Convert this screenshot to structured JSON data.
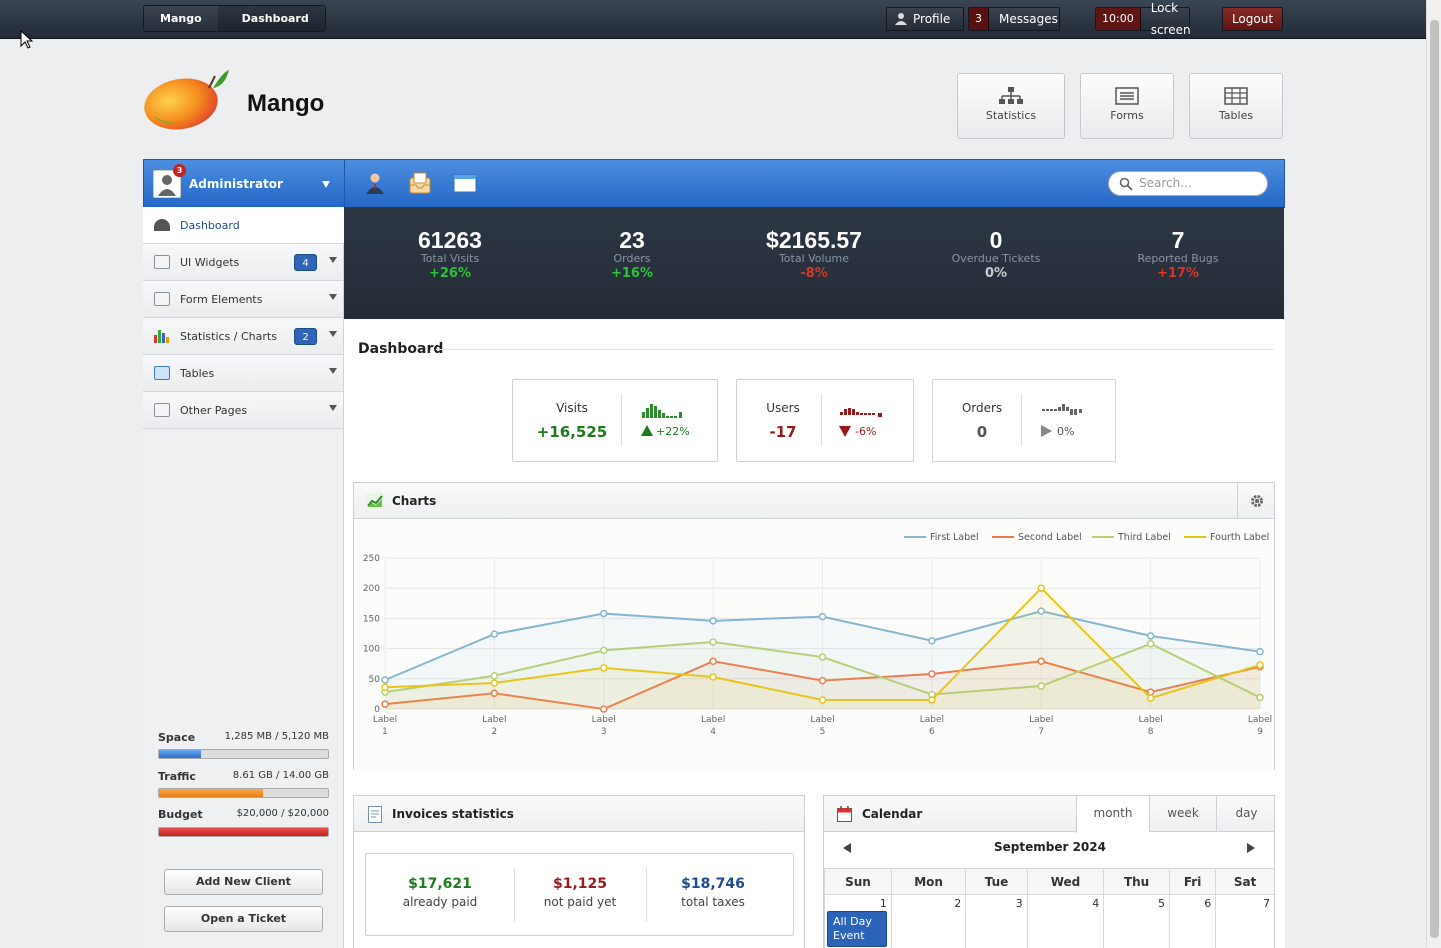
{
  "topbar": {
    "breadcrumbs": [
      "Mango",
      "Dashboard"
    ],
    "profile_label": "Profile",
    "messages_count": "3",
    "messages_label": "Messages",
    "time": "10:00",
    "lock_label": "Lock screen",
    "logout_label": "Logout"
  },
  "brand": {
    "name": "Mango"
  },
  "quick_buttons": [
    "Statistics",
    "Forms",
    "Tables"
  ],
  "user": {
    "name": "Administrator",
    "badge": "3"
  },
  "search": {
    "placeholder": "Search..."
  },
  "sidebar": {
    "items": [
      {
        "label": "Dashboard"
      },
      {
        "label": "UI Widgets",
        "badge": "4"
      },
      {
        "label": "Form Elements"
      },
      {
        "label": "Statistics / Charts",
        "badge": "2"
      },
      {
        "label": "Tables"
      },
      {
        "label": "Other Pages"
      }
    ],
    "usage": [
      {
        "label": "Space",
        "value": "1,285 MB / 5,120 MB",
        "fraction": 0.25,
        "color": "#3d7fd6"
      },
      {
        "label": "Traffic",
        "value": "8.61 GB / 14.00 GB",
        "fraction": 0.615,
        "color": "#f08a17"
      },
      {
        "label": "Budget",
        "value": "$20,000 / $20,000",
        "fraction": 1.0,
        "color": "#d42a2a"
      }
    ],
    "add_client": "Add New Client",
    "open_ticket": "Open a Ticket"
  },
  "stats": [
    {
      "value": "61263",
      "label": "Total Visits",
      "change": "+26%",
      "color": "#2ec23a"
    },
    {
      "value": "23",
      "label": "Orders",
      "change": "+16%",
      "color": "#2ec23a"
    },
    {
      "value": "$2165.57",
      "label": "Total Volume",
      "change": "-8%",
      "color": "#d8352b"
    },
    {
      "value": "0",
      "label": "Overdue Tickets",
      "change": "0%",
      "color": "#c8cdd3"
    },
    {
      "value": "7",
      "label": "Reported Bugs",
      "change": "+17%",
      "color": "#d8352b"
    }
  ],
  "dashboard": {
    "title": "Dashboard",
    "mini": [
      {
        "label": "Visits",
        "value": "+16,525",
        "pct": "+22%",
        "color": "#1e7a1e"
      },
      {
        "label": "Users",
        "value": "-17",
        "pct": "-6%",
        "color": "#9a1a1a"
      },
      {
        "label": "Orders",
        "value": "0",
        "pct": "0%",
        "color": "#555555"
      }
    ]
  },
  "charts_panel": {
    "title": "Charts"
  },
  "chart_data": {
    "type": "line",
    "categories": [
      "Label 1",
      "Label 2",
      "Label 3",
      "Label 4",
      "Label 5",
      "Label 6",
      "Label 7",
      "Label 8",
      "Label 9"
    ],
    "series": [
      {
        "name": "First Label",
        "color": "#86b6cf",
        "values": [
          48,
          124,
          158,
          146,
          153,
          113,
          162,
          121,
          95
        ]
      },
      {
        "name": "Second Label",
        "color": "#ec7a51",
        "values": [
          8,
          26,
          0,
          79,
          47,
          58,
          79,
          28,
          70
        ]
      },
      {
        "name": "Third Label",
        "color": "#b5cf7a",
        "values": [
          28,
          55,
          97,
          111,
          86,
          24,
          38,
          108,
          19
        ]
      },
      {
        "name": "Fourth Label",
        "color": "#e8c51b",
        "values": [
          36,
          43,
          68,
          53,
          15,
          15,
          200,
          18,
          73
        ]
      }
    ],
    "ylim": [
      0,
      250
    ],
    "yticks": [
      0,
      50,
      100,
      150,
      200,
      250
    ],
    "grid": true,
    "legend": "top-right"
  },
  "invoices": {
    "title": "Invoices statistics",
    "items": [
      {
        "amount": "$17,621",
        "label": "already paid",
        "color": "#1e7a1e"
      },
      {
        "amount": "$1,125",
        "label": "not paid yet",
        "color": "#9a1a1a"
      },
      {
        "amount": "$18,746",
        "label": "total taxes",
        "color": "#1d4c92"
      }
    ]
  },
  "calendar": {
    "title": "Calendar",
    "tabs": [
      "month",
      "week",
      "day"
    ],
    "month_label": "September 2024",
    "weekdays": [
      "Sun",
      "Mon",
      "Tue",
      "Wed",
      "Thu",
      "Fri",
      "Sat"
    ],
    "days": [
      "1",
      "2",
      "3",
      "4",
      "5",
      "6",
      "7"
    ],
    "event": "All Day Event"
  }
}
